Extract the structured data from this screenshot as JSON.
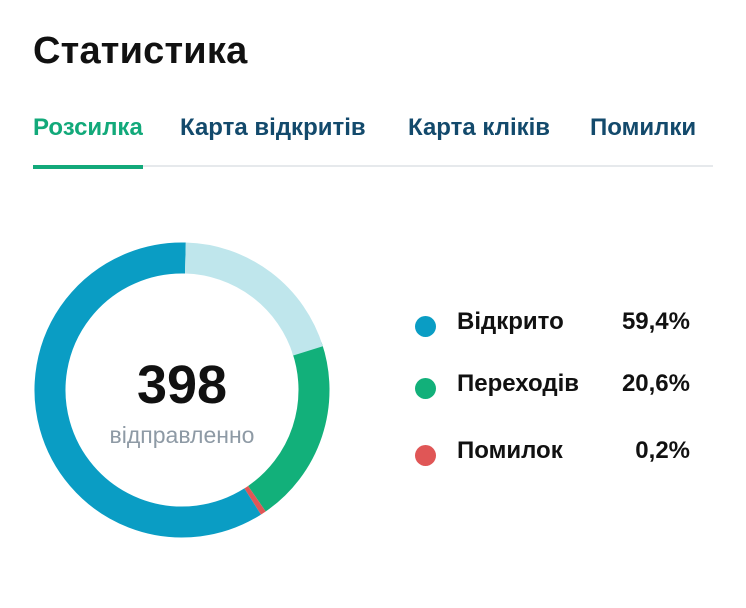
{
  "title": "Статистика",
  "tabs": [
    {
      "label": "Розсилка",
      "active": true
    },
    {
      "label": "Карта відкритів",
      "active": false
    },
    {
      "label": "Карта кліків",
      "active": false
    },
    {
      "label": "Помилки",
      "active": false
    }
  ],
  "colors": {
    "accent": "#12a97a",
    "tab_text": "#134a6c",
    "opened": "#0a9dc4",
    "clicks": "#12b07a",
    "errors": "#e05656",
    "remainder": "#bfe6ec"
  },
  "chart_data": {
    "type": "pie",
    "center_value": "398",
    "center_label": "відправленно",
    "slices": [
      {
        "label": "Відкрито",
        "value": 59.4,
        "display": "59,4%",
        "color": "#0a9dc4"
      },
      {
        "label": "Переходів",
        "value": 20.6,
        "display": "20,6%",
        "color": "#12b07a"
      },
      {
        "label": "Помилок",
        "value": 0.2,
        "display": "0,2%",
        "color": "#e05656"
      }
    ],
    "ring_order": [
      "clicks",
      "errors",
      "opened",
      "remainder"
    ]
  }
}
